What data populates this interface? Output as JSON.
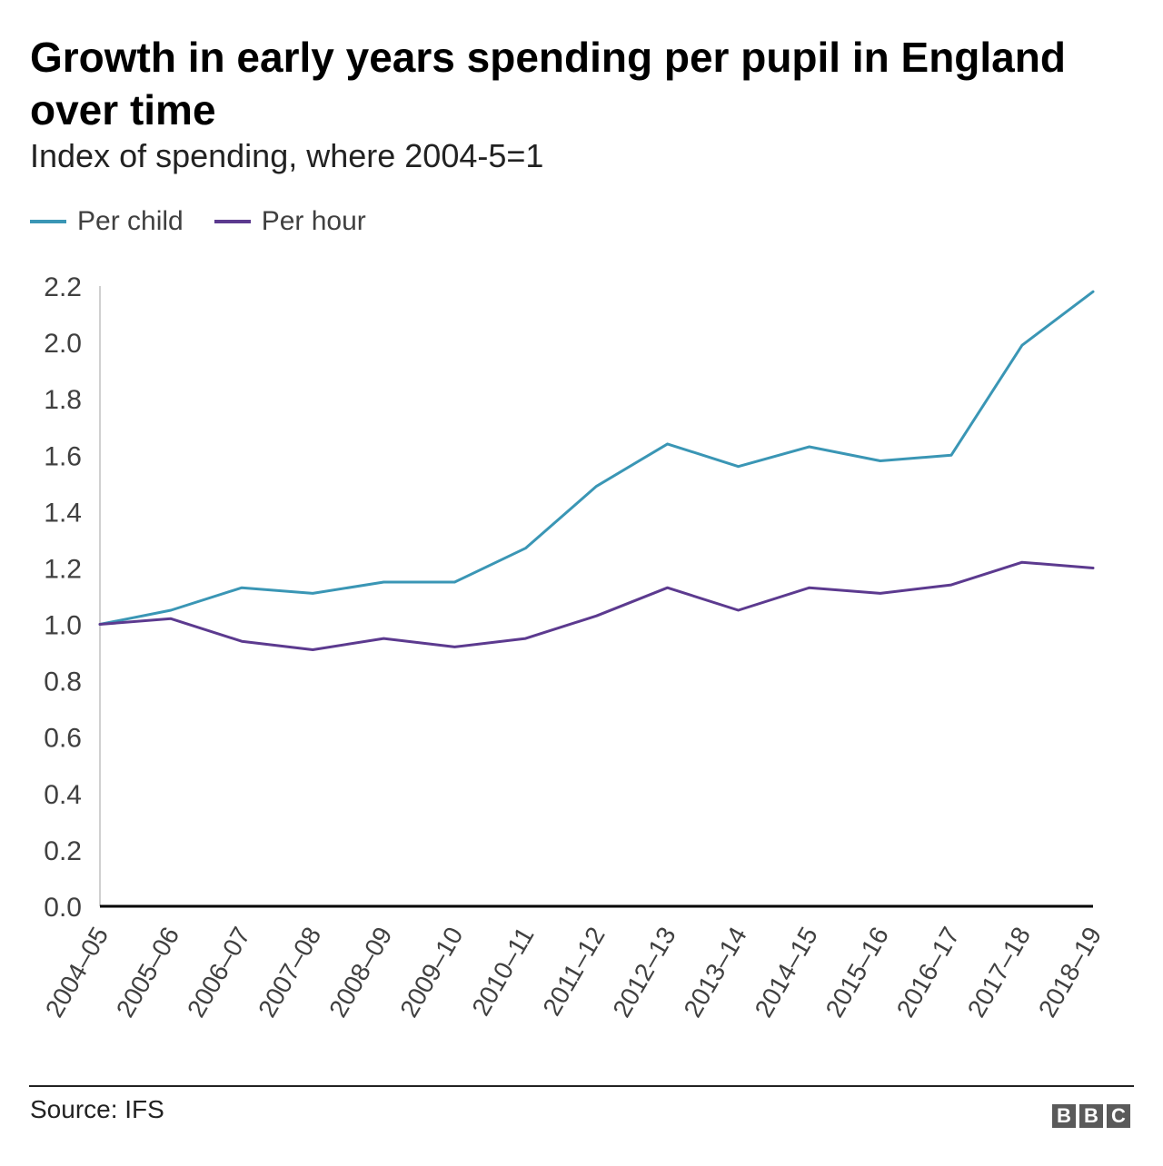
{
  "header": {
    "title": "Growth in early years spending per pupil in England over time",
    "subtitle": "Index of spending, where 2004-5=1"
  },
  "footer": {
    "source": "Source: IFS",
    "logo_letters": [
      "B",
      "B",
      "C"
    ]
  },
  "colors": {
    "per_child": "#3a96b5",
    "per_hour": "#5c3a8f",
    "axis": "#000000",
    "tick_text": "#404040"
  },
  "chart_data": {
    "type": "line",
    "title": "Growth in early years spending per pupil in England over time",
    "subtitle": "Index of spending, where 2004-5=1",
    "xlabel": "",
    "ylabel": "",
    "ylim": [
      0,
      2.2
    ],
    "yticks": [
      "0.0",
      "0.2",
      "0.4",
      "0.6",
      "0.8",
      "1.0",
      "1.2",
      "1.4",
      "1.6",
      "1.8",
      "2.0",
      "2.2"
    ],
    "grid": false,
    "legend_position": "top-left",
    "categories": [
      "2004–05",
      "2005–06",
      "2006–07",
      "2007–08",
      "2008–09",
      "2009–10",
      "2010–11",
      "2011–12",
      "2012–13",
      "2013–14",
      "2014–15",
      "2015–16",
      "2016–17",
      "2017–18",
      "2018–19"
    ],
    "series": [
      {
        "name": "Per child",
        "color": "#3a96b5",
        "values": [
          1.0,
          1.05,
          1.13,
          1.11,
          1.15,
          1.15,
          1.27,
          1.49,
          1.64,
          1.56,
          1.63,
          1.58,
          1.6,
          1.99,
          2.18
        ]
      },
      {
        "name": "Per hour",
        "color": "#5c3a8f",
        "values": [
          1.0,
          1.02,
          0.94,
          0.91,
          0.95,
          0.92,
          0.95,
          1.03,
          1.13,
          1.05,
          1.13,
          1.11,
          1.14,
          1.22,
          1.2
        ]
      }
    ]
  }
}
